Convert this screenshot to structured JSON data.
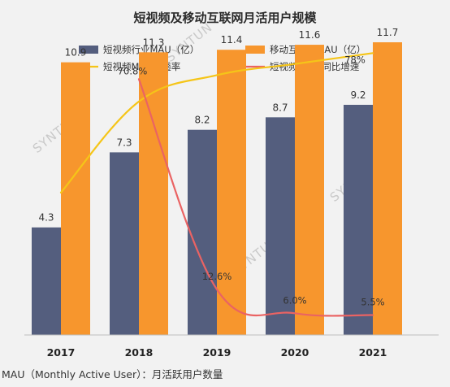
{
  "chart_data": {
    "type": "bar",
    "title": "短视频及移动互联网月活用户规模",
    "categories": [
      "2017",
      "2018",
      "2019",
      "2020",
      "2021"
    ],
    "series": [
      {
        "name": "短视频行业MAU（亿）",
        "kind": "bar",
        "color": "#545e7e",
        "values": [
          4.3,
          7.3,
          8.2,
          8.7,
          9.2
        ],
        "labels": [
          "4.3",
          "7.3",
          "8.2",
          "8.7",
          "9.2"
        ]
      },
      {
        "name": "移动互联网MAU（亿）",
        "kind": "bar",
        "color": "#f7962d",
        "values": [
          10.9,
          11.3,
          11.4,
          11.6,
          11.7
        ],
        "labels": [
          "10.9",
          "11.3",
          "11.4",
          "11.6",
          "11.7"
        ]
      },
      {
        "name": "短视频MAU渗透率",
        "kind": "line",
        "color": "#f5c518",
        "values": [
          39.4,
          64.6,
          71.9,
          75.0,
          78.0
        ],
        "labels": [
          "",
          "",
          "",
          "",
          "78%"
        ]
      },
      {
        "name": "短视频MAU 同比增速",
        "kind": "line",
        "color": "#ea6363",
        "values": [
          null,
          70.8,
          12.6,
          6.0,
          5.5
        ],
        "labels": [
          "",
          "70.8%",
          "12.6%",
          "6.0%",
          "5.5%"
        ]
      }
    ],
    "bar_ylim": [
      0,
      13
    ],
    "line_ylim": [
      0,
      90
    ],
    "legend_position": "top",
    "grid": false,
    "footnote": "MAU（Monthly Active User）：月活跃用户数量",
    "watermark": "SYNTUN"
  }
}
